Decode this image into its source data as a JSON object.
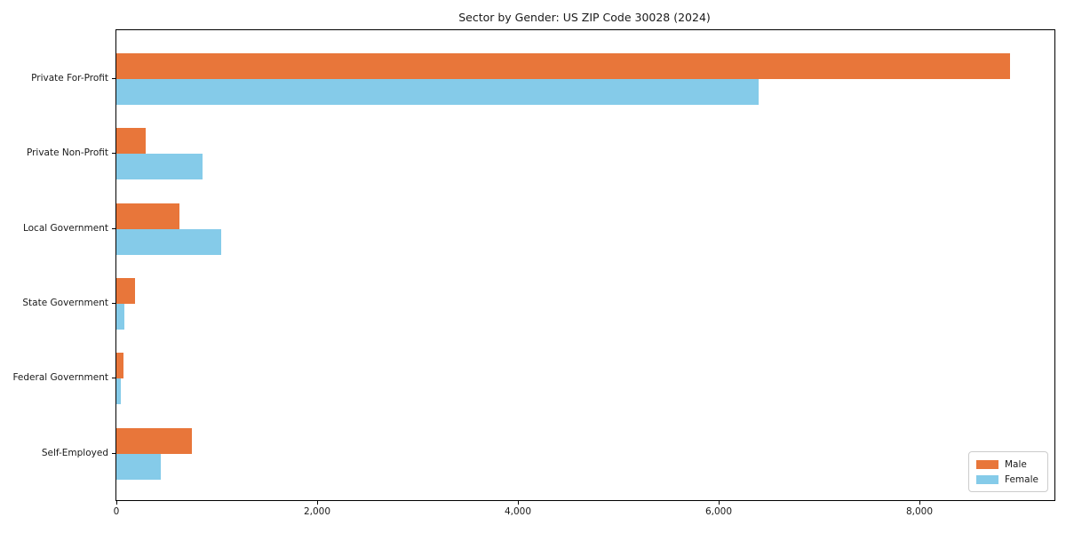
{
  "chart_data": {
    "type": "bar",
    "orientation": "horizontal",
    "title": "Sector by Gender: US ZIP Code 30028 (2024)",
    "categories": [
      "Private For-Profit",
      "Private Non-Profit",
      "Local Government",
      "State Government",
      "Federal Government",
      "Self-Employed"
    ],
    "series": [
      {
        "name": "Male",
        "color": "#e8763a",
        "values": [
          8900,
          290,
          630,
          190,
          70,
          750
        ]
      },
      {
        "name": "Female",
        "color": "#85cbe9",
        "values": [
          6400,
          860,
          1040,
          80,
          40,
          440
        ]
      }
    ],
    "xlabel": "",
    "ylabel": "",
    "xlim": [
      0,
      9345
    ],
    "x_ticks": [
      0,
      2000,
      4000,
      6000,
      8000
    ],
    "x_tick_labels": [
      "0",
      "2,000",
      "4,000",
      "6,000",
      "8,000"
    ],
    "grid": false,
    "legend_position": "lower right",
    "spines": "all",
    "background_color": "#ffffff",
    "text_color": "#1a1a1a"
  }
}
